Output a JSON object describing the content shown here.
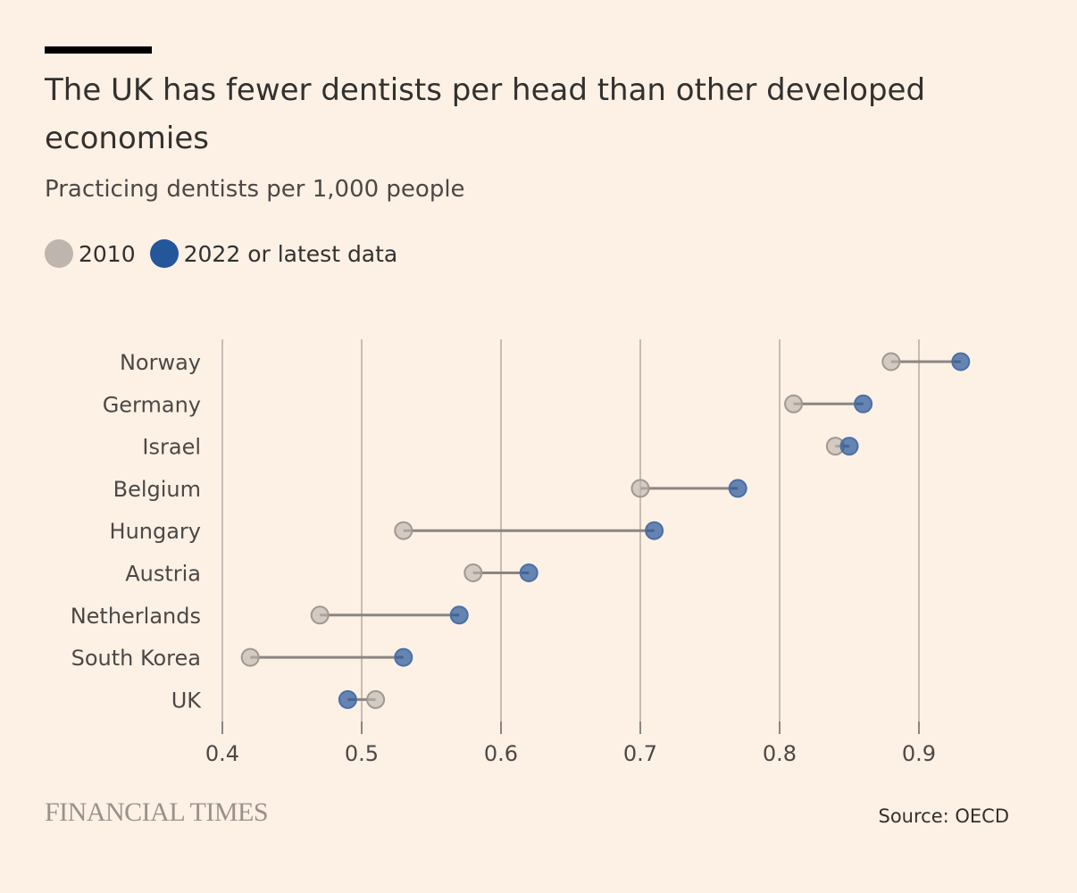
{
  "chart_data": {
    "type": "dumbbell",
    "title": "The UK has fewer dentists per head than other developed economies",
    "subtitle": "Practicing dentists per 1,000 people",
    "legend": [
      {
        "name": "2010",
        "color": "#bdb5ae"
      },
      {
        "name": "2022 or latest data",
        "color": "#24569a"
      }
    ],
    "categories": [
      "Norway",
      "Germany",
      "Israel",
      "Belgium",
      "Hungary",
      "Austria",
      "Netherlands",
      "South Korea",
      "UK"
    ],
    "series": [
      {
        "name": "2010",
        "values": [
          0.88,
          0.81,
          0.84,
          0.7,
          0.53,
          0.58,
          0.47,
          0.42,
          0.51
        ]
      },
      {
        "name": "2022 or latest data",
        "values": [
          0.93,
          0.86,
          0.85,
          0.77,
          0.71,
          0.62,
          0.57,
          0.53,
          0.49
        ]
      }
    ],
    "xlim": [
      0.4,
      0.95
    ],
    "xticks": [
      "0.4",
      "0.5",
      "0.6",
      "0.7",
      "0.8",
      "0.9"
    ],
    "xtick_values": [
      0.4,
      0.5,
      0.6,
      0.7,
      0.8,
      0.9
    ],
    "grid": true,
    "legend_position": "top-left"
  },
  "footer": {
    "brand": "FINANCIAL TIMES",
    "source": "Source: OECD"
  }
}
